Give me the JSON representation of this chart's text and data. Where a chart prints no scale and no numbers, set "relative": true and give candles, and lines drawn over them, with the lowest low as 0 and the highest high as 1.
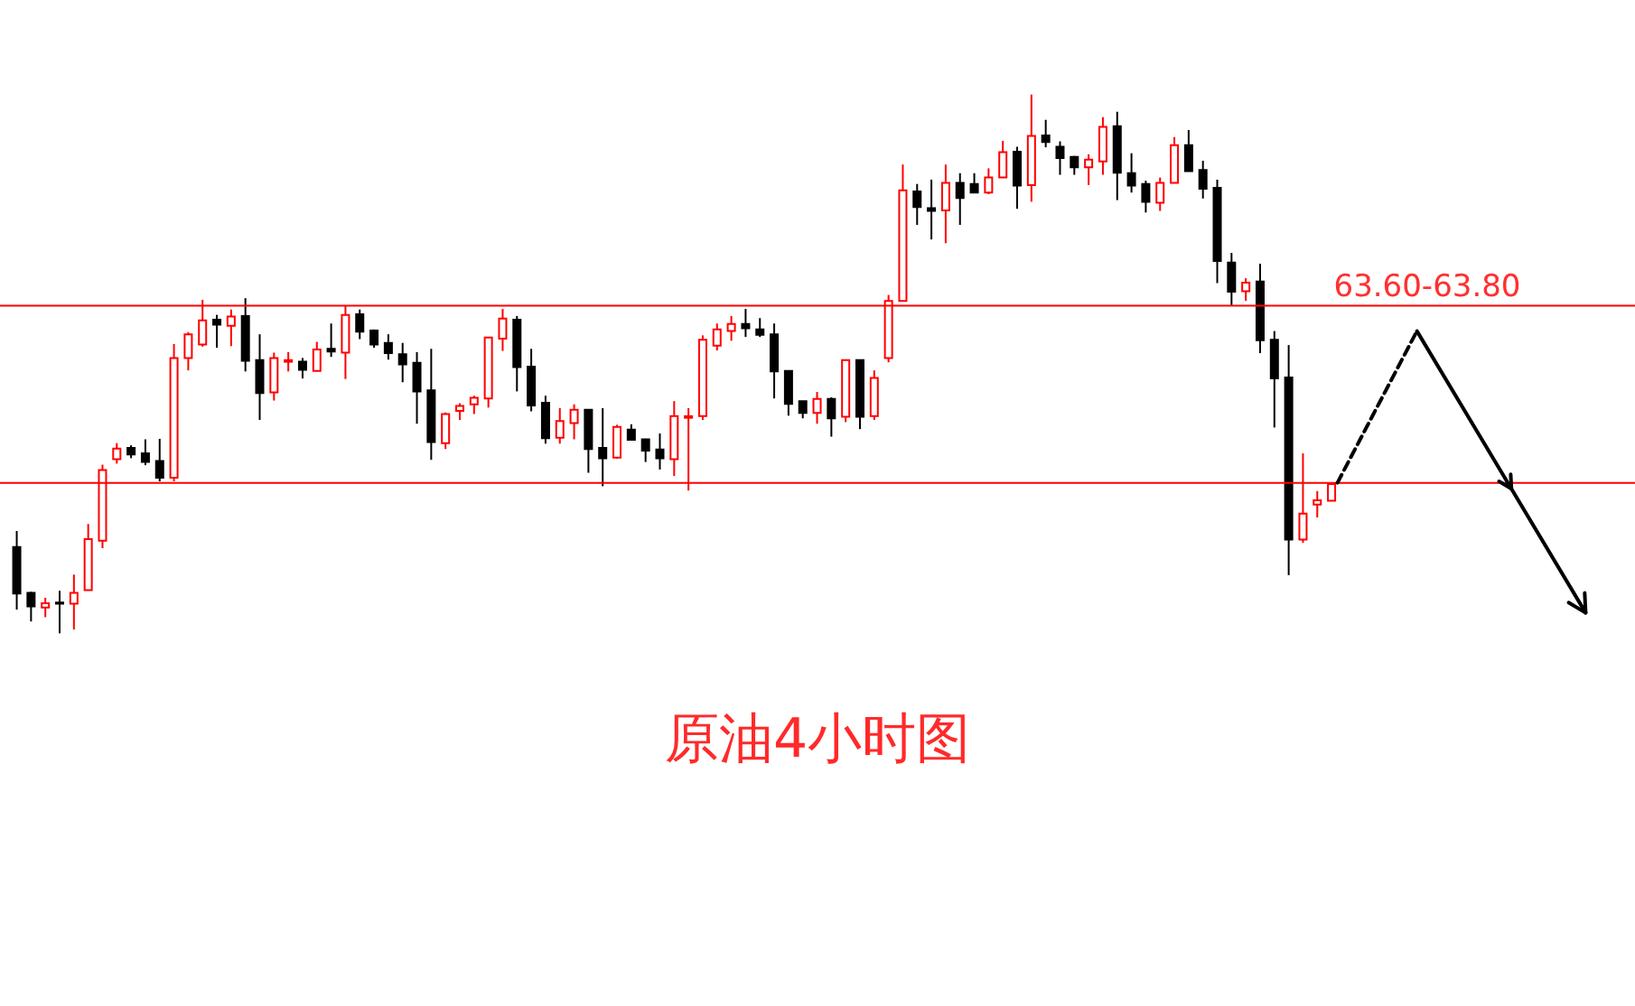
{
  "chart_data": {
    "type": "candlestick",
    "title": "原油4小时图",
    "relative": true,
    "categories": [
      null,
      null,
      null,
      null,
      null,
      null,
      null,
      null,
      null,
      null,
      null,
      null,
      null,
      null,
      null,
      null,
      null,
      null,
      null,
      null,
      null,
      null,
      null,
      null,
      null,
      null,
      null,
      null,
      null,
      null,
      null,
      null,
      null,
      null,
      null,
      null,
      null,
      null,
      null,
      null,
      null,
      null,
      null,
      null,
      null,
      null,
      null,
      null,
      null,
      null,
      null,
      null,
      null,
      null,
      null,
      null,
      null,
      null,
      null,
      null,
      null,
      null,
      null,
      null,
      null,
      null,
      null,
      null,
      null,
      null,
      null,
      null,
      null,
      null,
      null,
      null,
      null,
      null,
      null,
      null,
      null,
      null,
      null,
      null,
      null,
      null,
      null,
      null,
      null,
      null,
      null,
      null,
      null
    ],
    "ohlc": [
      [
        0.16,
        0.19,
        0.044,
        0.074
      ],
      [
        0.075,
        0.077,
        0.022,
        0.05
      ],
      [
        0.048,
        0.066,
        0.03,
        0.056
      ],
      [
        0.057,
        0.079,
        0.0,
        0.055
      ],
      [
        0.055,
        0.109,
        0.007,
        0.075
      ],
      [
        0.08,
        0.203,
        0.08,
        0.175
      ],
      [
        0.172,
        0.313,
        0.158,
        0.303
      ],
      [
        0.323,
        0.353,
        0.315,
        0.343
      ],
      [
        0.344,
        0.349,
        0.325,
        0.332
      ],
      [
        0.334,
        0.36,
        0.312,
        0.318
      ],
      [
        0.32,
        0.361,
        0.282,
        0.289
      ],
      [
        0.289,
        0.537,
        0.282,
        0.511
      ],
      [
        0.511,
        0.559,
        0.488,
        0.555
      ],
      [
        0.536,
        0.619,
        0.532,
        0.581
      ],
      [
        0.582,
        0.591,
        0.53,
        0.573
      ],
      [
        0.571,
        0.601,
        0.533,
        0.588
      ],
      [
        0.589,
        0.622,
        0.486,
        0.506
      ],
      [
        0.507,
        0.555,
        0.396,
        0.446
      ],
      [
        0.447,
        0.521,
        0.432,
        0.511
      ],
      [
        0.504,
        0.522,
        0.486,
        0.507
      ],
      [
        0.504,
        0.511,
        0.473,
        0.489
      ],
      [
        0.487,
        0.541,
        0.487,
        0.527
      ],
      [
        0.528,
        0.575,
        0.513,
        0.523
      ],
      [
        0.521,
        0.608,
        0.472,
        0.591
      ],
      [
        0.592,
        0.601,
        0.546,
        0.56
      ],
      [
        0.562,
        0.564,
        0.53,
        0.536
      ],
      [
        0.539,
        0.555,
        0.508,
        0.52
      ],
      [
        0.518,
        0.539,
        0.466,
        0.499
      ],
      [
        0.502,
        0.522,
        0.389,
        0.449
      ],
      [
        0.451,
        0.528,
        0.322,
        0.355
      ],
      [
        0.353,
        0.41,
        0.342,
        0.407
      ],
      [
        0.413,
        0.427,
        0.396,
        0.422
      ],
      [
        0.425,
        0.441,
        0.407,
        0.437
      ],
      [
        0.436,
        0.549,
        0.419,
        0.549
      ],
      [
        0.547,
        0.602,
        0.524,
        0.584
      ],
      [
        0.582,
        0.589,
        0.449,
        0.494
      ],
      [
        0.495,
        0.528,
        0.412,
        0.423
      ],
      [
        0.428,
        0.441,
        0.352,
        0.362
      ],
      [
        0.363,
        0.418,
        0.352,
        0.394
      ],
      [
        0.39,
        0.425,
        0.36,
        0.415
      ],
      [
        0.415,
        0.415,
        0.298,
        0.342
      ],
      [
        0.344,
        0.418,
        0.273,
        0.325
      ],
      [
        0.326,
        0.387,
        0.324,
        0.383
      ],
      [
        0.378,
        0.388,
        0.359,
        0.359
      ],
      [
        0.36,
        0.361,
        0.318,
        0.339
      ],
      [
        0.341,
        0.371,
        0.304,
        0.325
      ],
      [
        0.323,
        0.431,
        0.292,
        0.403
      ],
      [
        0.4,
        0.418,
        0.265,
        0.403
      ],
      [
        0.403,
        0.553,
        0.396,
        0.545
      ],
      [
        0.534,
        0.575,
        0.525,
        0.564
      ],
      [
        0.561,
        0.589,
        0.543,
        0.574
      ],
      [
        0.574,
        0.602,
        0.55,
        0.566
      ],
      [
        0.564,
        0.585,
        0.55,
        0.554
      ],
      [
        0.555,
        0.575,
        0.436,
        0.486
      ],
      [
        0.487,
        0.487,
        0.404,
        0.426
      ],
      [
        0.431,
        0.431,
        0.399,
        0.409
      ],
      [
        0.409,
        0.448,
        0.389,
        0.435
      ],
      [
        0.435,
        0.438,
        0.365,
        0.399
      ],
      [
        0.402,
        0.507,
        0.392,
        0.507
      ],
      [
        0.507,
        0.507,
        0.379,
        0.402
      ],
      [
        0.403,
        0.488,
        0.396,
        0.474
      ],
      [
        0.511,
        0.628,
        0.503,
        0.617
      ],
      [
        0.617,
        0.87,
        0.617,
        0.822
      ],
      [
        0.82,
        0.834,
        0.758,
        0.791
      ],
      [
        0.789,
        0.842,
        0.731,
        0.784
      ],
      [
        0.785,
        0.87,
        0.724,
        0.836
      ],
      [
        0.836,
        0.854,
        0.758,
        0.808
      ],
      [
        0.834,
        0.854,
        0.818,
        0.818
      ],
      [
        0.818,
        0.863,
        0.815,
        0.846
      ],
      [
        0.846,
        0.914,
        0.846,
        0.893
      ],
      [
        0.894,
        0.903,
        0.788,
        0.831
      ],
      [
        0.832,
        1.0,
        0.801,
        0.923
      ],
      [
        0.924,
        0.953,
        0.902,
        0.912
      ],
      [
        0.903,
        0.913,
        0.851,
        0.882
      ],
      [
        0.884,
        0.886,
        0.851,
        0.865
      ],
      [
        0.865,
        0.889,
        0.832,
        0.879
      ],
      [
        0.876,
        0.958,
        0.851,
        0.94
      ],
      [
        0.941,
        0.968,
        0.804,
        0.855
      ],
      [
        0.854,
        0.891,
        0.818,
        0.831
      ],
      [
        0.834,
        0.84,
        0.781,
        0.801
      ],
      [
        0.799,
        0.846,
        0.784,
        0.836
      ],
      [
        0.836,
        0.921,
        0.836,
        0.906
      ],
      [
        0.906,
        0.934,
        0.858,
        0.858
      ],
      [
        0.86,
        0.877,
        0.807,
        0.825
      ],
      [
        0.827,
        0.842,
        0.65,
        0.691
      ],
      [
        0.688,
        0.706,
        0.608,
        0.634
      ],
      [
        0.635,
        0.659,
        0.617,
        0.651
      ],
      [
        0.653,
        0.686,
        0.52,
        0.544
      ],
      [
        0.545,
        0.561,
        0.382,
        0.473
      ],
      [
        0.475,
        0.535,
        0.108,
        0.174
      ],
      [
        0.174,
        0.334,
        0.168,
        0.222
      ],
      [
        0.239,
        0.264,
        0.215,
        0.247
      ],
      [
        0.246,
        0.279,
        0.246,
        0.277
      ]
    ],
    "colors": [
      "#000000",
      "#000000",
      "#ff0000",
      "#000000",
      "#ff0000",
      "#ff0000",
      "#ff0000",
      "#ff0000",
      "#000000",
      "#000000",
      "#000000",
      "#ff0000",
      "#ff0000",
      "#ff0000",
      "#000000",
      "#ff0000",
      "#000000",
      "#000000",
      "#ff0000",
      "#ff0000",
      "#000000",
      "#ff0000",
      "#000000",
      "#ff0000",
      "#000000",
      "#000000",
      "#000000",
      "#000000",
      "#000000",
      "#000000",
      "#ff0000",
      "#ff0000",
      "#ff0000",
      "#ff0000",
      "#ff0000",
      "#000000",
      "#000000",
      "#000000",
      "#ff0000",
      "#ff0000",
      "#000000",
      "#000000",
      "#ff0000",
      "#000000",
      "#000000",
      "#000000",
      "#ff0000",
      "#ff0000",
      "#ff0000",
      "#ff0000",
      "#ff0000",
      "#000000",
      "#000000",
      "#000000",
      "#000000",
      "#000000",
      "#ff0000",
      "#000000",
      "#ff0000",
      "#000000",
      "#ff0000",
      "#ff0000",
      "#ff0000",
      "#000000",
      "#000000",
      "#ff0000",
      "#000000",
      "#000000",
      "#ff0000",
      "#ff0000",
      "#000000",
      "#ff0000",
      "#000000",
      "#000000",
      "#000000",
      "#ff0000",
      "#ff0000",
      "#000000",
      "#000000",
      "#000000",
      "#ff0000",
      "#ff0000",
      "#000000",
      "#000000",
      "#000000",
      "#000000",
      "#ff0000",
      "#000000",
      "#000000",
      "#000000",
      "#ff0000",
      "#ff0000",
      "#ff0000"
    ],
    "ref_lines": [
      {
        "axis": "y",
        "value": 0.608,
        "color": "#ff0000"
      },
      {
        "axis": "y",
        "value": 0.279,
        "color": "#ff0000"
      }
    ],
    "annotations": [
      "63.60-63.80"
    ]
  }
}
